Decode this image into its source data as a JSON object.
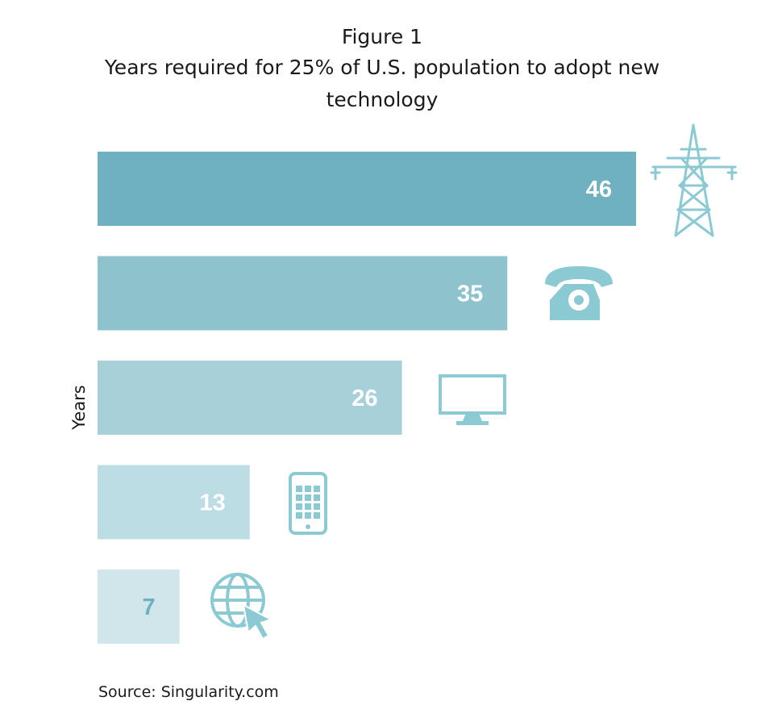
{
  "figure_label": "Figure 1",
  "title": "Years required for 25% of U.S. population to adopt new technology",
  "source": "Source: Singularity.com",
  "chart_data": {
    "type": "bar",
    "orientation": "horizontal",
    "title": "Years required for 25% of U.S. population to adopt new technology",
    "xlabel": "",
    "ylabel": "Years",
    "categories": [
      "electricity",
      "telephone",
      "television",
      "mobile phone",
      "internet"
    ],
    "values": [
      46,
      35,
      26,
      13,
      7
    ],
    "colors": [
      "#6fb1c1",
      "#8ec3ce",
      "#a7d0d9",
      "#bddde4",
      "#d0e6eb"
    ],
    "label_colors": [
      "#ffffff",
      "#ffffff",
      "#ffffff",
      "#ffffff",
      "#6fb1c1"
    ],
    "icons": [
      "power-tower-icon",
      "telephone-icon",
      "monitor-icon",
      "tablet-icon",
      "globe-cursor-icon"
    ],
    "icon_color": "#8ccad3",
    "grid": false,
    "legend": "none"
  }
}
